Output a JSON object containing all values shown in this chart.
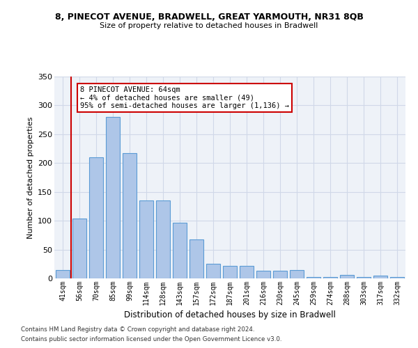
{
  "title1": "8, PINECOT AVENUE, BRADWELL, GREAT YARMOUTH, NR31 8QB",
  "title2": "Size of property relative to detached houses in Bradwell",
  "xlabel": "Distribution of detached houses by size in Bradwell",
  "ylabel": "Number of detached properties",
  "categories": [
    "41sqm",
    "56sqm",
    "70sqm",
    "85sqm",
    "99sqm",
    "114sqm",
    "128sqm",
    "143sqm",
    "157sqm",
    "172sqm",
    "187sqm",
    "201sqm",
    "216sqm",
    "230sqm",
    "245sqm",
    "259sqm",
    "274sqm",
    "288sqm",
    "303sqm",
    "317sqm",
    "332sqm"
  ],
  "values": [
    14,
    104,
    210,
    280,
    217,
    135,
    135,
    97,
    67,
    25,
    22,
    22,
    13,
    13,
    14,
    2,
    3,
    6,
    3,
    5,
    3
  ],
  "bar_color": "#aec6e8",
  "bar_edge_color": "#5b9bd5",
  "annotation_text": "8 PINECOT AVENUE: 64sqm\n← 4% of detached houses are smaller (49)\n95% of semi-detached houses are larger (1,136) →",
  "annotation_box_color": "#ffffff",
  "annotation_box_edge_color": "#cc0000",
  "vline_color": "#cc0000",
  "grid_color": "#d0d8e8",
  "background_color": "#eef2f8",
  "ylim": [
    0,
    350
  ],
  "yticks": [
    0,
    50,
    100,
    150,
    200,
    250,
    300,
    350
  ],
  "footer1": "Contains HM Land Registry data © Crown copyright and database right 2024.",
  "footer2": "Contains public sector information licensed under the Open Government Licence v3.0."
}
